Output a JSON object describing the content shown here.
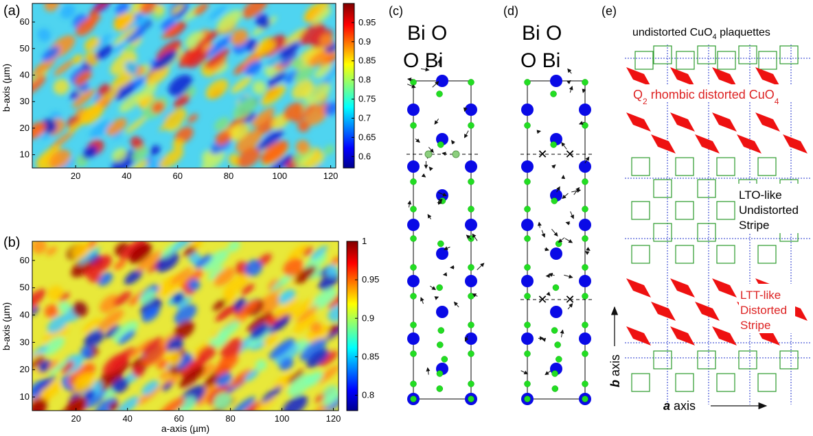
{
  "figure": {
    "panel_labels": [
      "(a)",
      "(b)",
      "(c)",
      "(d)",
      "(e)"
    ]
  },
  "panel_a": {
    "ylabel": "b-axis (µm)",
    "xticks": [
      "20",
      "40",
      "60",
      "80",
      "100",
      "120"
    ],
    "yticks": [
      "10",
      "20",
      "30",
      "40",
      "50",
      "60"
    ],
    "colorbar_ticks": [
      "0.6",
      "0.65",
      "0.7",
      "0.75",
      "0.8",
      "0.85",
      "0.9",
      "0.95"
    ],
    "colorbar_range": [
      0.57,
      1.0
    ]
  },
  "panel_b": {
    "ylabel": "b-axis (µm)",
    "xlabel": "a-axis (µm)",
    "xticks": [
      "20",
      "40",
      "60",
      "80",
      "100",
      "120"
    ],
    "yticks": [
      "10",
      "20",
      "30",
      "40",
      "50",
      "60"
    ],
    "colorbar_ticks": [
      "0.8",
      "0.85",
      "0.9",
      "0.95",
      "1"
    ],
    "colorbar_range": [
      0.78,
      1.0
    ]
  },
  "panel_c": {
    "legend_row1": "Bi O",
    "legend_row2": "O Bi"
  },
  "panel_d": {
    "legend_row1": "Bi O",
    "legend_row2": "O Bi"
  },
  "panel_e": {
    "title_main": "undistorted CuO",
    "title_sub": "4",
    "title_tail": " plaquettes",
    "q2_main": "Q",
    "q2_sub": "2",
    "q2_mid": " rhombic  distorted CuO",
    "q2_sub2": "4",
    "lto_lines": [
      "LTO-like",
      "Undistorted",
      "Stripe"
    ],
    "ltt_lines": [
      "LTT-like",
      "Distorted",
      "Stripe"
    ],
    "a_axis_bold": "a",
    "a_axis_rest": " axis",
    "b_axis_bold": "b",
    "b_axis_rest": " axis"
  },
  "colors": {
    "bi_atom": "#0a0ae6",
    "o_atom": "#22dd22",
    "distorted": "#ee1111",
    "plaquette": "#2a9a2a",
    "grid": "#2233cc",
    "red_text": "#dd2222"
  }
}
